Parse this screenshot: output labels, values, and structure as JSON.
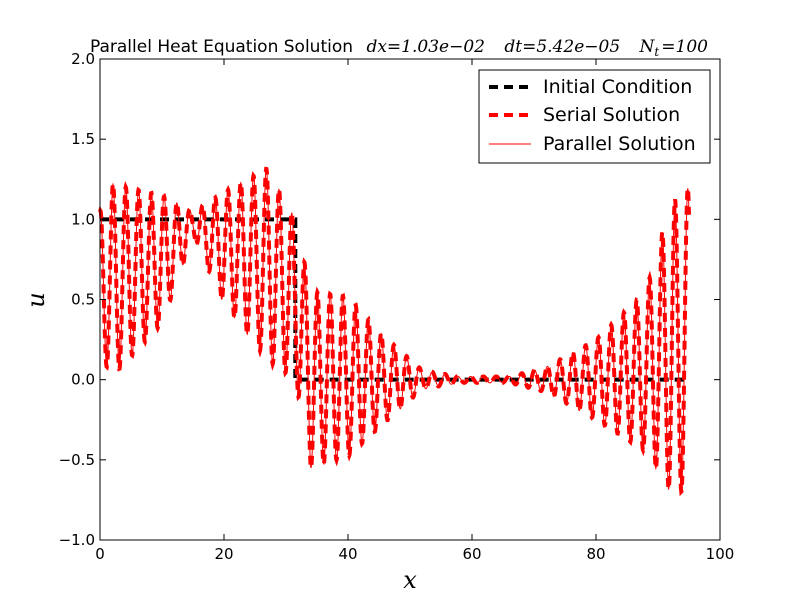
{
  "chart_data": {
    "type": "line",
    "title": "Parallel Heat Equation Solution",
    "title_params": [
      "dx = 1.03e−02",
      "dt = 5.42e−05",
      "N_t = 100"
    ],
    "title_math": {
      "dx_symbol": "dx",
      "dx_value": "1.03e−02",
      "dt_symbol": "dt",
      "dt_value": "5.42e−05",
      "nt_symbol": "N",
      "nt_sub": "t",
      "nt_value": "100",
      "eq": "="
    },
    "xlabel": "x",
    "ylabel": "u",
    "xlim": [
      0,
      100
    ],
    "ylim": [
      -1.0,
      2.0
    ],
    "xticks": [
      0,
      20,
      40,
      60,
      80,
      100
    ],
    "yticks": [
      -1.0,
      -0.5,
      0.0,
      0.5,
      1.0,
      1.5,
      2.0
    ],
    "xtick_labels": [
      "0",
      "20",
      "40",
      "60",
      "80",
      "100"
    ],
    "ytick_labels": [
      "−1.0",
      "−0.5",
      "0.0",
      "0.5",
      "1.0",
      "1.5",
      "2.0"
    ],
    "grid": false,
    "legend_position": "top-right",
    "series": [
      {
        "name": "Initial Condition",
        "color": "#000000",
        "style": "dashed-thick",
        "x": [
          0,
          31.5,
          31.5,
          95
        ],
        "y": [
          1.0,
          1.0,
          0.0,
          0.0
        ]
      },
      {
        "name": "Serial Solution",
        "color": "#ff0000",
        "style": "dashed-thick",
        "x_range": [
          0,
          95
        ],
        "oscillation_period": 2.06,
        "envelope": [
          {
            "x": 0,
            "amp": 0.45,
            "center": 0.6
          },
          {
            "x": 2,
            "amp": 0.6,
            "center": 0.62
          },
          {
            "x": 10,
            "amp": 0.4,
            "center": 0.75
          },
          {
            "x": 15,
            "amp": 0.08,
            "center": 0.97
          },
          {
            "x": 20,
            "amp": 0.35,
            "center": 0.82
          },
          {
            "x": 27,
            "amp": 0.6,
            "center": 0.72
          },
          {
            "x": 31.5,
            "amp": 0.5,
            "center": 0.5
          },
          {
            "x": 34,
            "amp": 0.55,
            "center": 0.0
          },
          {
            "x": 40,
            "amp": 0.5,
            "center": 0.02
          },
          {
            "x": 45,
            "amp": 0.3,
            "center": 0.0
          },
          {
            "x": 52,
            "amp": 0.06,
            "center": 0.0
          },
          {
            "x": 58,
            "amp": 0.02,
            "center": 0.0
          },
          {
            "x": 66,
            "amp": 0.02,
            "center": 0.0
          },
          {
            "x": 72,
            "amp": 0.08,
            "center": 0.0
          },
          {
            "x": 80,
            "amp": 0.25,
            "center": 0.0
          },
          {
            "x": 88,
            "amp": 0.5,
            "center": 0.05
          },
          {
            "x": 92,
            "amp": 0.9,
            "center": 0.2
          },
          {
            "x": 95,
            "amp": 0.95,
            "center": 0.25
          }
        ]
      },
      {
        "name": "Parallel Solution",
        "color": "#ff0000",
        "style": "solid-thin",
        "same_as": "Serial Solution"
      }
    ]
  }
}
